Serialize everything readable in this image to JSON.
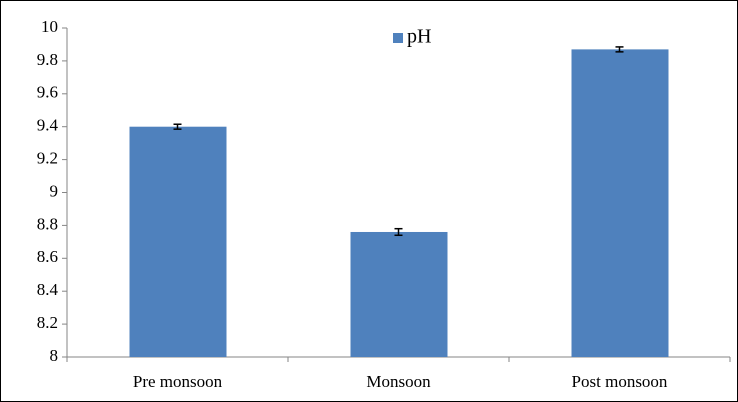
{
  "chart_data": {
    "type": "bar",
    "categories": [
      "Pre monsoon",
      "Monsoon",
      "Post monsoon"
    ],
    "series": [
      {
        "name": "pH",
        "color": "#4f81bd",
        "values": [
          9.4,
          8.76,
          9.87
        ],
        "errors": [
          0.015,
          0.02,
          0.015
        ]
      }
    ],
    "ylim": [
      8,
      10
    ],
    "yticks": [
      8,
      8.2,
      8.4,
      8.6,
      8.8,
      9,
      9.2,
      9.4,
      9.6,
      9.8,
      10
    ],
    "legend": "top"
  }
}
